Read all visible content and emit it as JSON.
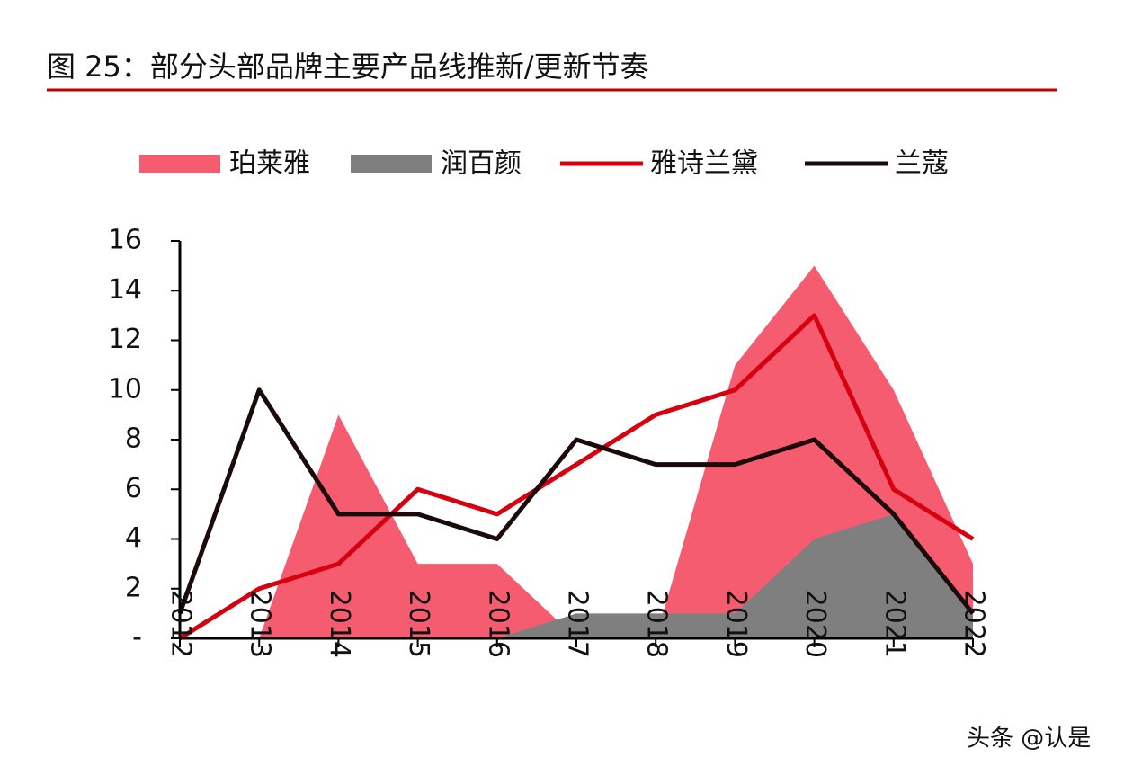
{
  "chart_data": {
    "type": "line",
    "title": "图 25：部分头部品牌主要产品线推新/更新节奏",
    "categories": [
      "2012",
      "2013",
      "2014",
      "2015",
      "2016",
      "2017",
      "2018",
      "2019",
      "2020",
      "2021",
      "2022"
    ],
    "series": [
      {
        "name": "珀莱雅",
        "kind": "area",
        "color": "#f55c70",
        "values": [
          0,
          0,
          9,
          3,
          3,
          0,
          0,
          11,
          15,
          10,
          3
        ]
      },
      {
        "name": "润百颜",
        "kind": "area",
        "color": "#7f7f7f",
        "values": [
          0,
          0,
          0,
          0,
          0,
          1,
          1,
          1,
          4,
          5,
          1
        ]
      },
      {
        "name": "雅诗兰黛",
        "kind": "line",
        "color": "#d7000f",
        "values": [
          0,
          2,
          3,
          6,
          5,
          7,
          9,
          10,
          13,
          6,
          4
        ]
      },
      {
        "name": "兰蔻",
        "kind": "line",
        "color": "#1a0a0a",
        "values": [
          1,
          10,
          5,
          5,
          4,
          8,
          7,
          7,
          8,
          5,
          1
        ]
      }
    ],
    "ylim": [
      0,
      16
    ],
    "yticks": [
      {
        "value": 0,
        "label": "-"
      },
      2,
      4,
      6,
      8,
      10,
      12,
      14,
      16
    ],
    "watermark": "头条 @认是"
  }
}
